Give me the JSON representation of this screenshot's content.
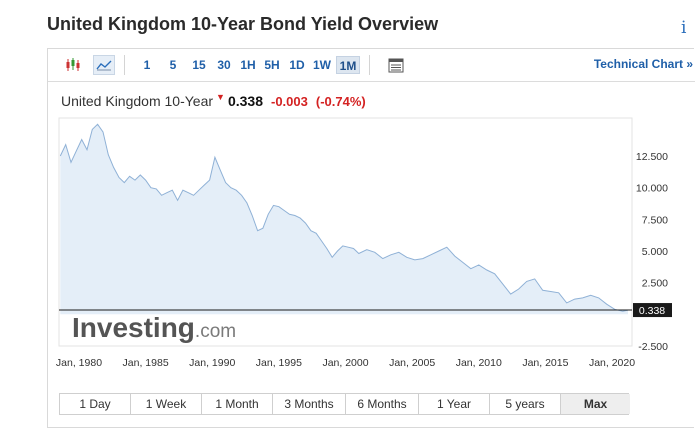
{
  "page": {
    "title": "United Kingdom 10-Year Bond Yield Overview",
    "info_icon": "i"
  },
  "toolbar": {
    "chart_type_icons": [
      "candlestick-icon",
      "area-chart-icon"
    ],
    "intervals": [
      "1",
      "5",
      "15",
      "30",
      "1H",
      "5H",
      "1D",
      "1W",
      "1M"
    ],
    "active_interval": "1M",
    "settings_icon": "table-icon",
    "tech_chart_label": "Technical Chart »"
  },
  "quote": {
    "name": "United Kingdom 10-Year",
    "arrow": "▼",
    "price": "0.338",
    "change": "-0.003",
    "change_pct": "(-0.74%)"
  },
  "colors": {
    "line": "#8fb1d6",
    "fill": "#e4eef8",
    "down": "#d42222",
    "link": "#1f5fa8"
  },
  "chart_data": {
    "type": "area",
    "title": "",
    "xlabel": "",
    "ylabel": "",
    "x_ticks": [
      "Jan, 1980",
      "Jan, 1985",
      "Jan, 1990",
      "Jan, 1995",
      "Jan, 2000",
      "Jan, 2005",
      "Jan, 2010",
      "Jan, 2015",
      "Jan, 2020"
    ],
    "y_ticks": [
      "12.500",
      "10.000",
      "7.500",
      "5.000",
      "2.500",
      "-2.500"
    ],
    "ylim": [
      -2.5,
      15.5
    ],
    "xlim": [
      1978.5,
      2021.5
    ],
    "current_value_label": "0.338",
    "watermark": "Investing.com",
    "x": [
      1978.6,
      1979.0,
      1979.4,
      1979.8,
      1980.2,
      1980.6,
      1981.0,
      1981.4,
      1981.8,
      1982.2,
      1982.6,
      1983.0,
      1983.4,
      1983.8,
      1984.2,
      1984.6,
      1985.0,
      1985.4,
      1985.8,
      1986.2,
      1986.6,
      1987.0,
      1987.4,
      1987.8,
      1988.2,
      1988.6,
      1989.0,
      1989.4,
      1989.8,
      1990.2,
      1990.6,
      1991.0,
      1991.4,
      1991.8,
      1992.2,
      1992.6,
      1993.0,
      1993.4,
      1993.8,
      1994.2,
      1994.6,
      1995.0,
      1995.4,
      1995.8,
      1996.2,
      1996.6,
      1997.0,
      1997.4,
      1997.8,
      1998.2,
      1998.6,
      1999.0,
      1999.4,
      1999.8,
      2000.2,
      2000.6,
      2001.0,
      2001.6,
      2002.2,
      2002.8,
      2003.4,
      2004.0,
      2004.6,
      2005.2,
      2005.8,
      2006.4,
      2007.0,
      2007.6,
      2008.2,
      2008.8,
      2009.4,
      2010.0,
      2010.6,
      2011.2,
      2011.8,
      2012.4,
      2013.0,
      2013.6,
      2014.2,
      2014.8,
      2015.4,
      2016.0,
      2016.6,
      2017.2,
      2017.8,
      2018.4,
      2019.0,
      2019.6,
      2020.2,
      2020.8,
      2021.2
    ],
    "values": [
      12.5,
      13.4,
      12.0,
      12.9,
      13.8,
      13.0,
      14.6,
      15.0,
      14.4,
      12.6,
      11.6,
      10.8,
      10.4,
      10.9,
      10.6,
      11.0,
      10.6,
      10.0,
      9.9,
      9.4,
      9.6,
      9.8,
      9.0,
      9.8,
      9.6,
      9.4,
      9.8,
      10.2,
      10.6,
      12.4,
      11.4,
      10.4,
      10.0,
      9.8,
      9.4,
      8.8,
      7.8,
      6.6,
      6.8,
      7.9,
      8.6,
      8.5,
      8.2,
      7.9,
      7.8,
      7.6,
      7.2,
      6.6,
      6.4,
      5.8,
      5.2,
      4.5,
      5.0,
      5.4,
      5.3,
      5.2,
      4.8,
      5.1,
      4.9,
      4.4,
      4.7,
      4.9,
      4.5,
      4.3,
      4.4,
      4.7,
      5.0,
      5.3,
      4.6,
      4.1,
      3.6,
      3.9,
      3.5,
      3.2,
      2.4,
      1.6,
      2.0,
      2.6,
      2.8,
      1.9,
      1.8,
      1.7,
      0.9,
      1.2,
      1.3,
      1.5,
      1.3,
      0.8,
      0.4,
      0.25,
      0.338
    ]
  },
  "ranges": {
    "items": [
      "1 Day",
      "1 Week",
      "1 Month",
      "3 Months",
      "6 Months",
      "1 Year",
      "5 years",
      "Max"
    ],
    "active": "Max"
  }
}
